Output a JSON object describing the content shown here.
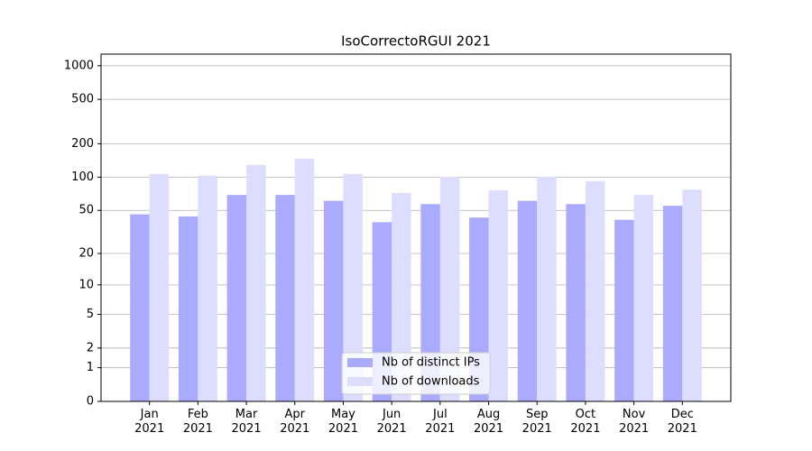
{
  "chart_data": {
    "type": "bar",
    "title": "IsoCorrectoRGUI 2021",
    "categories": [
      "Jan\n2021",
      "Feb\n2021",
      "Mar\n2021",
      "Apr\n2021",
      "May\n2021",
      "Jun\n2021",
      "Jul\n2021",
      "Aug\n2021",
      "Sep\n2021",
      "Oct\n2021",
      "Nov\n2021",
      "Dec\n2021"
    ],
    "series": [
      {
        "name": "Nb of distinct IPs",
        "color": "#aaaaff",
        "values": [
          46,
          44,
          69,
          69,
          61,
          39,
          57,
          43,
          61,
          57,
          41,
          55
        ]
      },
      {
        "name": "Nb of downloads",
        "color": "#ddddff",
        "values": [
          107,
          103,
          129,
          147,
          107,
          72,
          101,
          76,
          101,
          92,
          69,
          77
        ]
      }
    ],
    "yscale": "log1p",
    "ylim": [
      0,
      1270
    ],
    "yticks": [
      0,
      1,
      2,
      5,
      10,
      20,
      50,
      100,
      200,
      500,
      1000
    ],
    "grid": true,
    "legend": "lower center"
  }
}
